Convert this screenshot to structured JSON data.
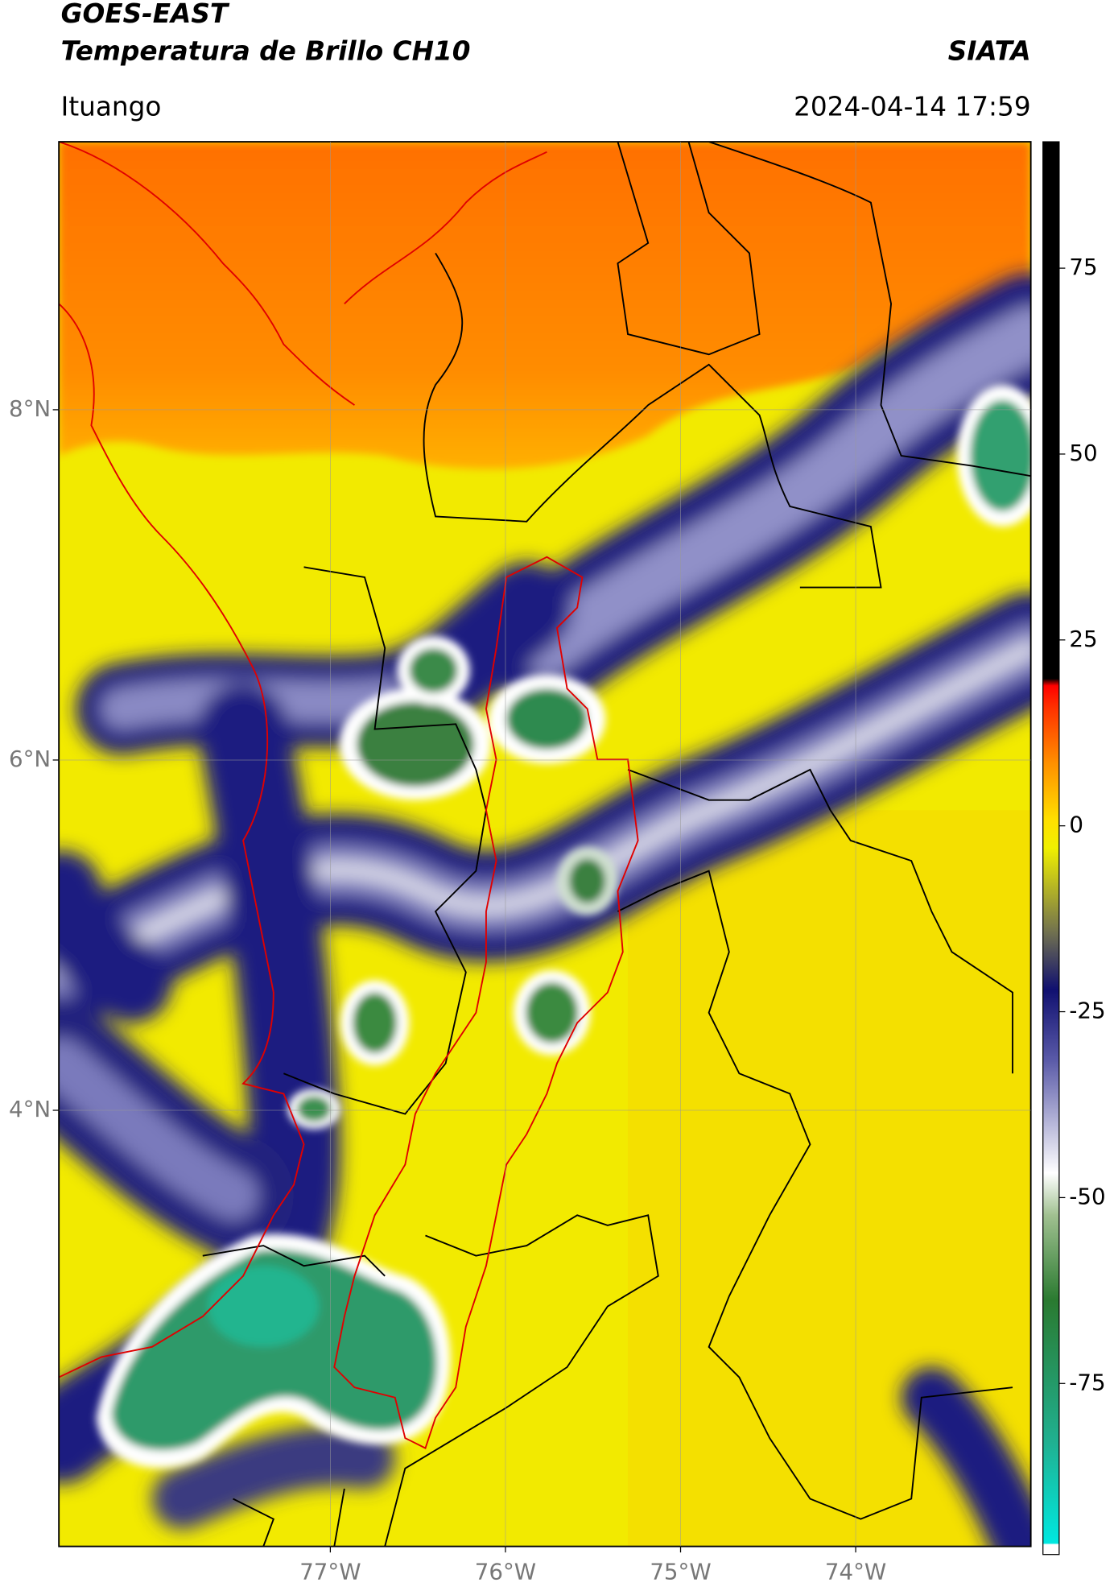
{
  "header": {
    "title": "GOES-EAST",
    "subtitle": "Temperatura de Brillo CH10",
    "brand": "SIATA",
    "location": "Ituango",
    "datetime": "2024-04-14 17:59"
  },
  "map": {
    "xlim": [
      -78.55,
      -73.0
    ],
    "ylim": [
      1.51,
      9.53
    ],
    "xticks": [
      {
        "value": -77,
        "label": "77°W"
      },
      {
        "value": -76,
        "label": "76°W"
      },
      {
        "value": -75,
        "label": "75°W"
      },
      {
        "value": -74,
        "label": "74°W"
      }
    ],
    "yticks": [
      {
        "value": 8,
        "label": "8°N"
      },
      {
        "value": 6,
        "label": "6°N"
      },
      {
        "value": 4,
        "label": "4°N"
      }
    ],
    "grid": true
  },
  "colorbar": {
    "lim": [
      -98,
      92
    ],
    "ticks": [
      75,
      50,
      25,
      0,
      -25,
      -50,
      -75
    ]
  }
}
